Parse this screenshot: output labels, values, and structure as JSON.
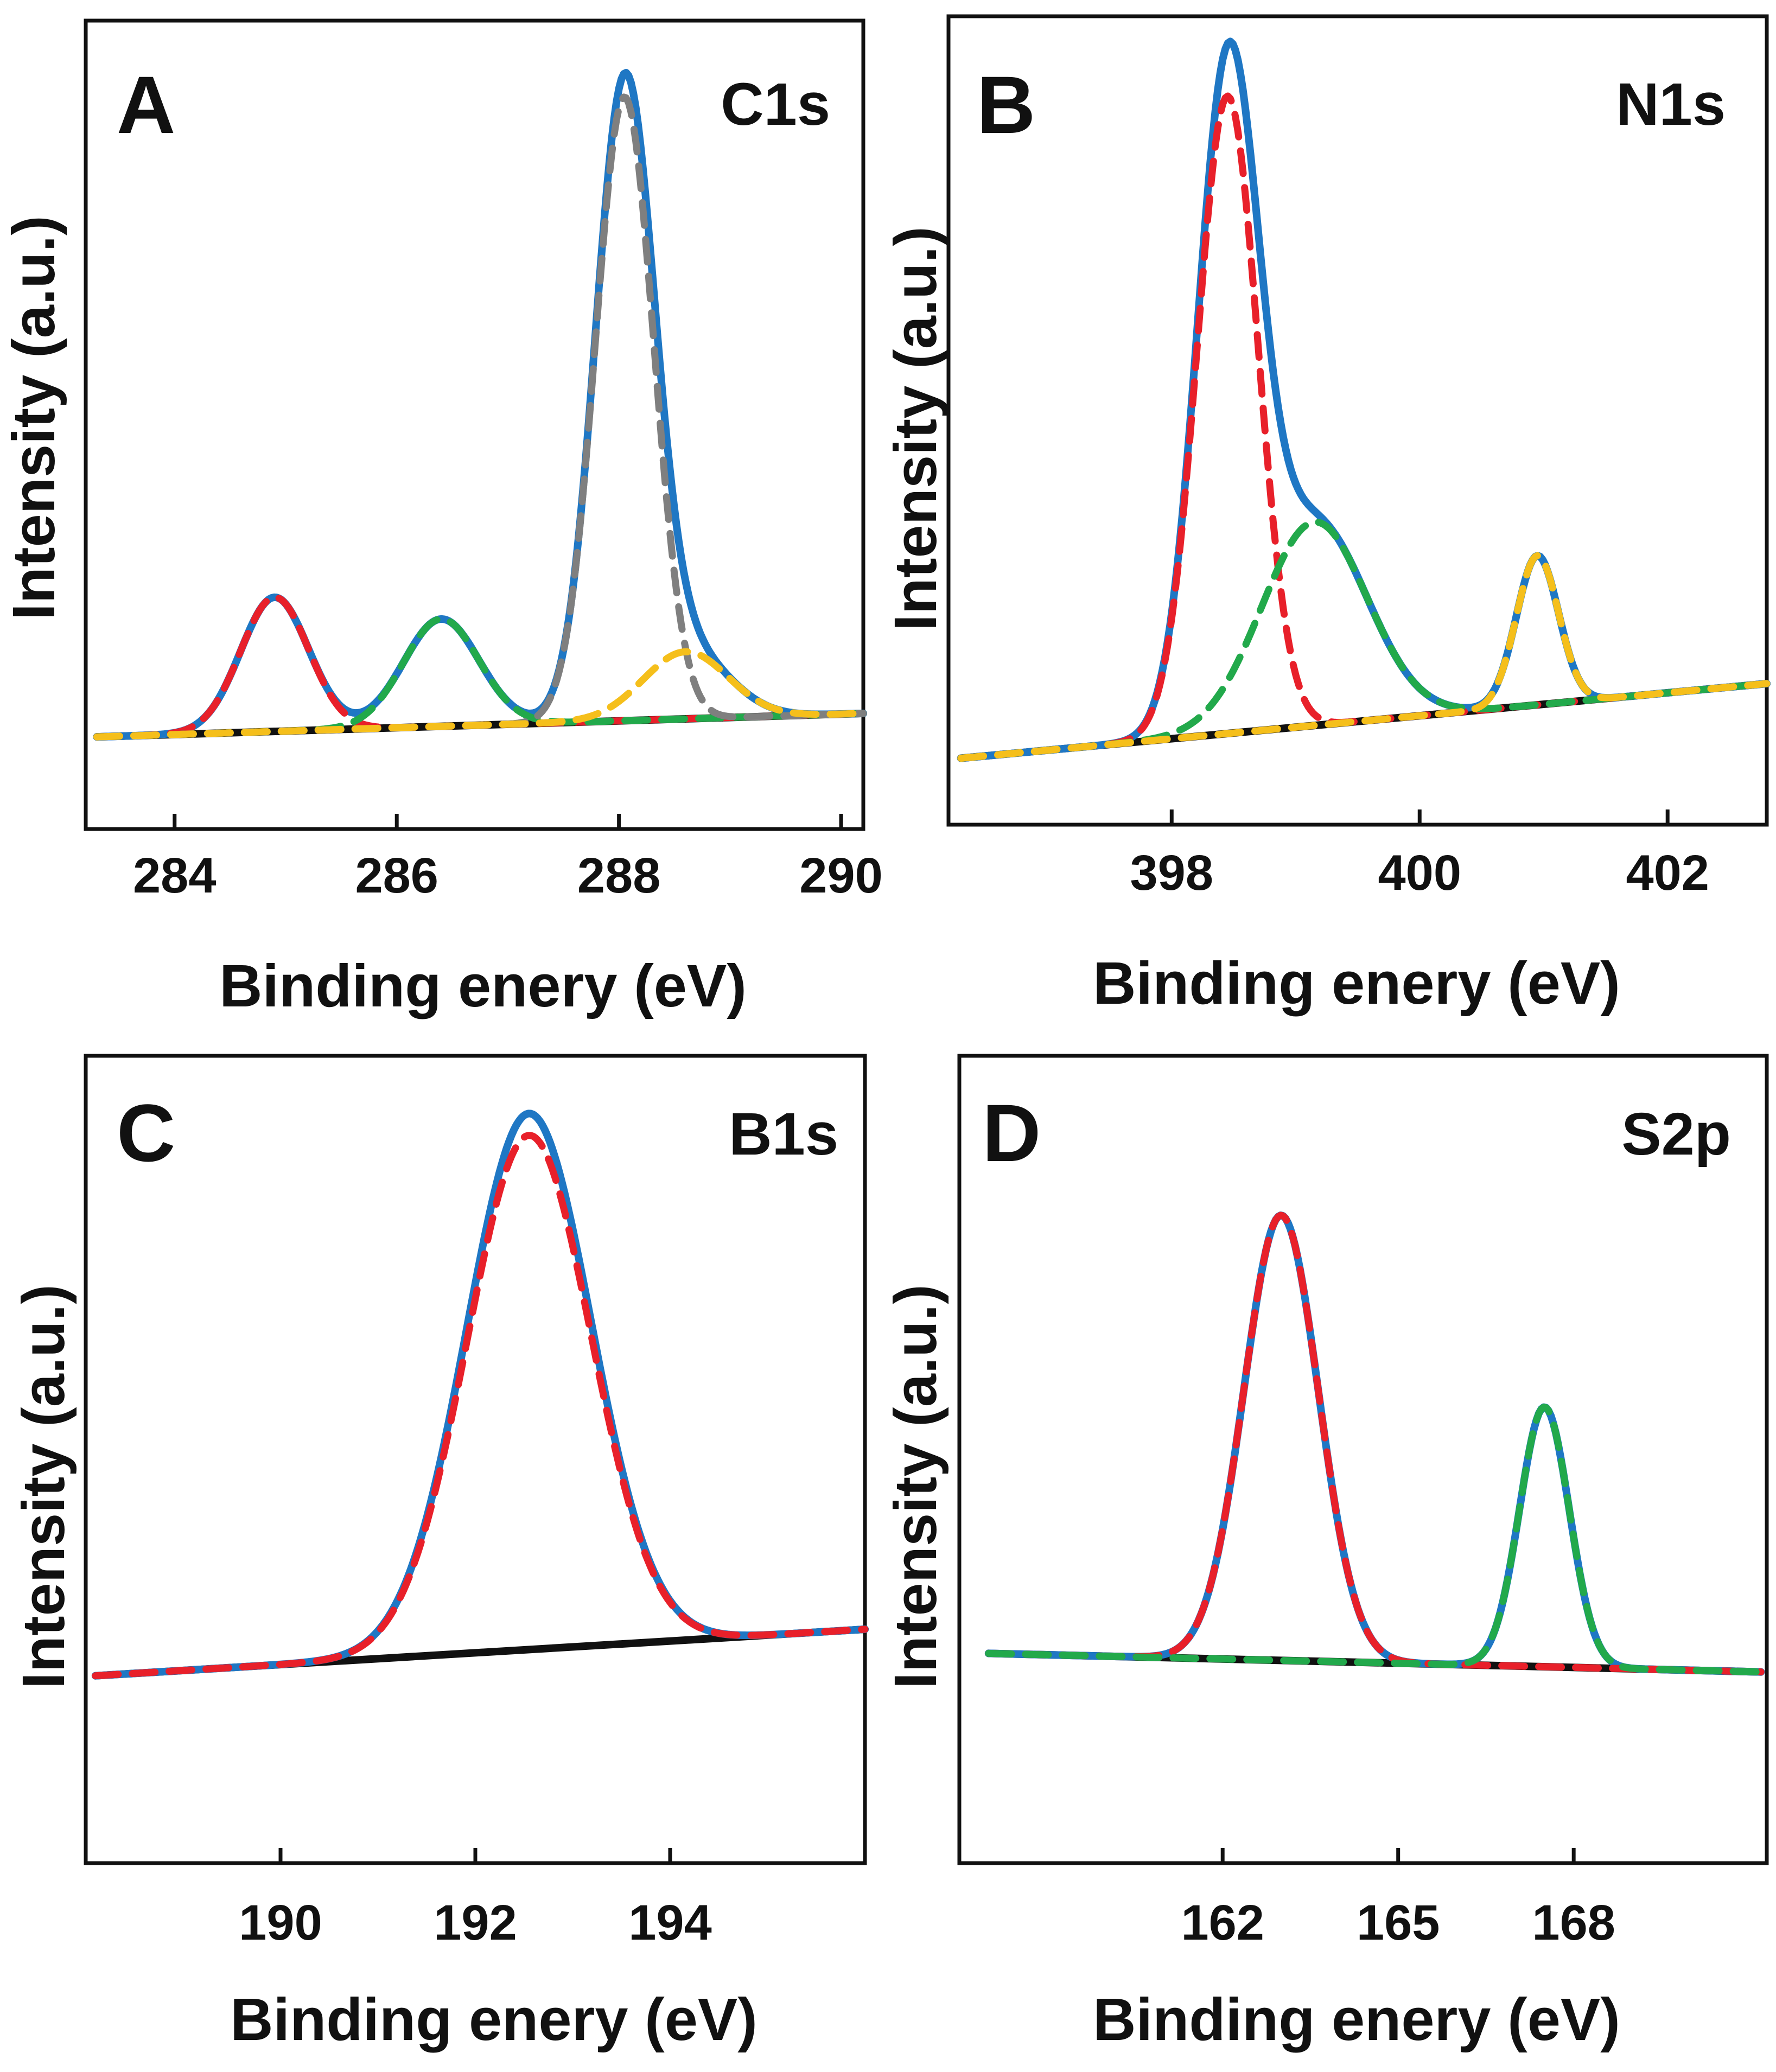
{
  "colors": {
    "envelope": "#1f77c4",
    "red": "#e8202a",
    "green": "#22a94b",
    "orange": "#f5bf1b",
    "gray": "#7f7f7f",
    "baseline": "#111111"
  },
  "chart_data": [
    {
      "id": "A",
      "type": "line",
      "panel_label": "A",
      "peak_label": "C1s",
      "xlabel": "Binding enery (eV)",
      "ylabel": "Intensity (a.u.)",
      "xlim": [
        283.2,
        290.2
      ],
      "ylim": [
        -0.05,
        1.05
      ],
      "xticks": [
        "284",
        "286",
        "288",
        "290"
      ],
      "xtick_values": [
        284,
        286,
        288,
        290
      ],
      "baseline": [
        [
          283.3,
          0.0
        ],
        [
          290.2,
          0.035
        ]
      ],
      "components": [
        {
          "name": "envelope",
          "color": "envelope",
          "dashed": false,
          "peaks": []
        },
        {
          "name": "peak-1",
          "color": "red",
          "dashed": true,
          "peaks": [
            [
              284.9,
              0.2,
              0.72
            ]
          ]
        },
        {
          "name": "peak-2",
          "color": "green",
          "dashed": true,
          "peaks": [
            [
              286.4,
              0.16,
              0.8
            ]
          ]
        },
        {
          "name": "peak-3",
          "color": "gray",
          "dashed": true,
          "peaks": [
            [
              288.05,
              0.93,
              0.62
            ]
          ]
        },
        {
          "name": "peak-4",
          "color": "orange",
          "dashed": true,
          "peaks": [
            [
              288.6,
              0.1,
              0.9
            ]
          ]
        }
      ]
    },
    {
      "id": "B",
      "type": "line",
      "panel_label": "B",
      "peak_label": "N1s",
      "xlabel": "Binding enery (eV)",
      "ylabel": "Intensity (a.u.)",
      "xlim": [
        396.2,
        402.8
      ],
      "ylim": [
        -0.05,
        1.05
      ],
      "xticks": [
        "398",
        "400",
        "402"
      ],
      "xtick_values": [
        398,
        400,
        402
      ],
      "baseline": [
        [
          396.3,
          0.0
        ],
        [
          402.8,
          0.11
        ]
      ],
      "components": [
        {
          "name": "envelope",
          "color": "envelope",
          "dashed": false,
          "peaks": []
        },
        {
          "name": "peak-1",
          "color": "red",
          "dashed": true,
          "peaks": [
            [
              398.45,
              0.94,
              0.58
            ]
          ]
        },
        {
          "name": "peak-2",
          "color": "green",
          "dashed": true,
          "peaks": [
            [
              399.15,
              0.3,
              1.0
            ]
          ]
        },
        {
          "name": "peak-3",
          "color": "orange",
          "dashed": true,
          "peaks": [
            [
              400.95,
              0.22,
              0.4
            ]
          ]
        }
      ]
    },
    {
      "id": "C",
      "type": "line",
      "panel_label": "C",
      "peak_label": "B1s",
      "xlabel": "Binding enery (eV)",
      "ylabel": "Intensity (a.u.)",
      "xlim": [
        188.0,
        196.0
      ],
      "ylim": [
        -0.16,
        1.05
      ],
      "xticks": [
        "190",
        "192",
        "194"
      ],
      "xtick_values": [
        190,
        192,
        194
      ],
      "baseline": [
        [
          188.1,
          0.0
        ],
        [
          196.0,
          0.085
        ]
      ],
      "components": [
        {
          "name": "envelope",
          "color": "envelope",
          "dashed": false,
          "peaks": [
            [
              192.55,
              0.98,
              1.5
            ]
          ]
        },
        {
          "name": "peak-1",
          "color": "red",
          "dashed": true,
          "peaks": [
            [
              192.55,
              0.94,
              1.5
            ]
          ]
        }
      ]
    },
    {
      "id": "D",
      "type": "line",
      "panel_label": "D",
      "peak_label": "S2p",
      "xlabel": "Binding enery (eV)",
      "ylabel": "Intensity (a.u.)",
      "xlim": [
        157.5,
        171.3
      ],
      "ylim": [
        -0.12,
        1.05
      ],
      "xticks": [
        "162",
        "165",
        "168"
      ],
      "xtick_values": [
        162,
        165,
        168
      ],
      "baseline": [
        [
          158.0,
          0.0
        ],
        [
          171.2,
          -0.04
        ]
      ],
      "components": [
        {
          "name": "envelope",
          "color": "envelope",
          "dashed": false,
          "peaks": []
        },
        {
          "name": "peak-1",
          "color": "red",
          "dashed": true,
          "peaks": [
            [
              163.0,
              0.96,
              1.5
            ]
          ]
        },
        {
          "name": "peak-2",
          "color": "green",
          "dashed": true,
          "peaks": [
            [
              167.5,
              0.56,
              1.0
            ]
          ]
        }
      ]
    }
  ]
}
